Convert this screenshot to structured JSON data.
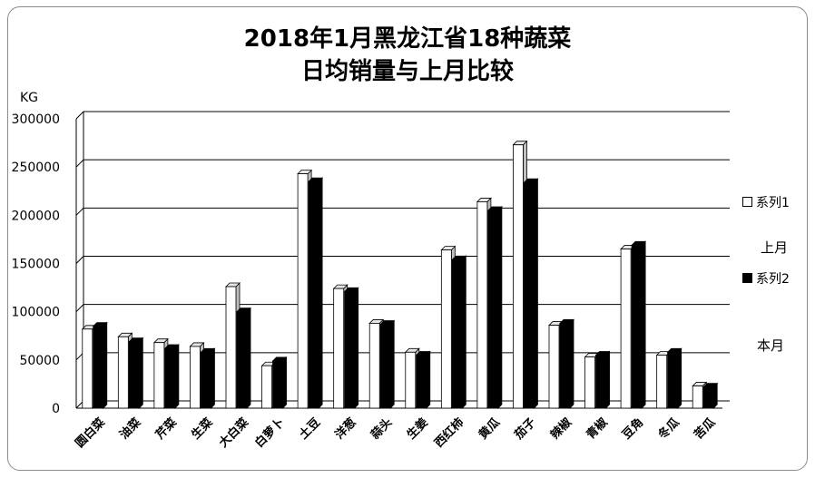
{
  "chart_data": {
    "type": "bar",
    "title_line1": "2018年1月黑龙江省18种蔬菜",
    "title_line2": "日均销量与上月比较",
    "ylabel": "KG",
    "ylim": [
      0,
      300000
    ],
    "yticks": [
      "0",
      "50000",
      "100000",
      "150000",
      "200000",
      "250000",
      "300000"
    ],
    "categories": [
      "圆白菜",
      "油菜",
      "芹菜",
      "生菜",
      "大白菜",
      "白萝卜",
      "土豆",
      "洋葱",
      "蒜头",
      "生姜",
      "西红柿",
      "黄瓜",
      "茄子",
      "辣椒",
      "青椒",
      "豆角",
      "冬瓜",
      "苦瓜"
    ],
    "series": [
      {
        "name": "系列1",
        "color": "#ffffff",
        "values": [
          82000,
          74000,
          68000,
          64000,
          126000,
          44000,
          243000,
          124000,
          88000,
          58000,
          164000,
          214000,
          273000,
          86000,
          53000,
          165000,
          55000,
          23000
        ]
      },
      {
        "name": "系列2",
        "color": "#000000",
        "values": [
          85000,
          69000,
          62000,
          58000,
          100000,
          49000,
          235000,
          121000,
          87000,
          55000,
          154000,
          205000,
          234000,
          88000,
          55000,
          169000,
          58000,
          22000
        ]
      }
    ],
    "legend_position": "right",
    "grid": true
  },
  "annotations": {
    "prev_month": "上月",
    "this_month": "本月"
  }
}
